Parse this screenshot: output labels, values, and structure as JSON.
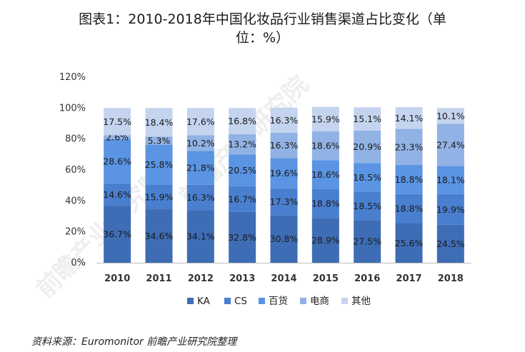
{
  "title": {
    "line1": "图表1：2010-2018年中国化妆品行业销售渠道占比变化（单",
    "line2": "位：%）"
  },
  "source": "资料来源：Euromonitor 前瞻产业研究院整理",
  "watermark": "前瞻产业研究院",
  "chart_data": {
    "type": "bar",
    "stacked": true,
    "title": "2010-2018年中国化妆品行业销售渠道占比变化（单位：%）",
    "categories": [
      "2010",
      "2011",
      "2012",
      "2013",
      "2014",
      "2015",
      "2016",
      "2017",
      "2018"
    ],
    "ylim": [
      0,
      120
    ],
    "yticks": [
      0,
      20,
      40,
      60,
      80,
      100,
      120
    ],
    "ytick_labels": [
      "0%",
      "20%",
      "40%",
      "60%",
      "80%",
      "100%",
      "120%"
    ],
    "legend_position": "bottom",
    "grid": false,
    "series": [
      {
        "name": "KA",
        "color": "#3e6db5",
        "values": [
          36.7,
          34.6,
          34.1,
          32.8,
          30.8,
          28.9,
          27.5,
          25.6,
          24.5
        ]
      },
      {
        "name": "CS",
        "color": "#4a7fcf",
        "values": [
          14.6,
          15.9,
          16.3,
          16.7,
          17.3,
          18.8,
          18.5,
          18.8,
          19.9
        ]
      },
      {
        "name": "百货",
        "color": "#5a94e3",
        "values": [
          28.6,
          25.8,
          21.8,
          20.5,
          19.6,
          18.6,
          18.5,
          18.8,
          18.1
        ]
      },
      {
        "name": "电商",
        "color": "#91b2e4",
        "values": [
          2.6,
          5.3,
          10.2,
          13.2,
          16.3,
          18.6,
          20.9,
          23.3,
          27.4
        ]
      },
      {
        "name": "其他",
        "color": "#c4d4ef",
        "values": [
          17.5,
          18.4,
          17.6,
          16.8,
          16.3,
          15.9,
          15.1,
          14.1,
          10.1
        ]
      }
    ]
  }
}
